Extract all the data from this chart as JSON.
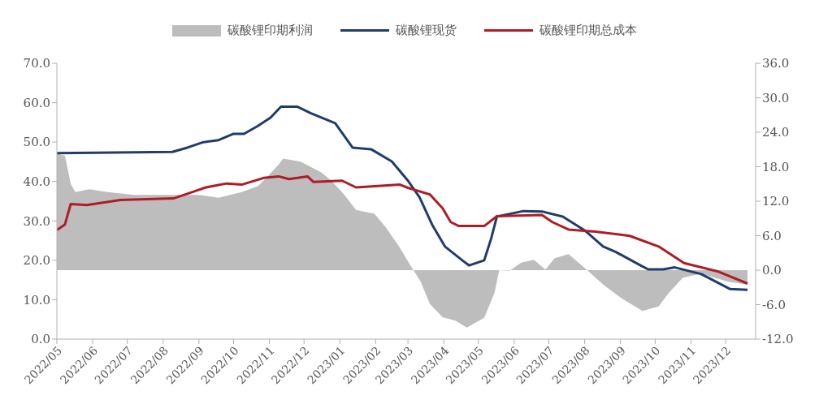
{
  "chart_data": {
    "type": "line",
    "legend": "top",
    "tick_labels": "xy",
    "xlim": [
      "2022-05-01",
      "2023-12-27"
    ],
    "xticks": [
      {
        "value": "2022-05-01",
        "label": "2022/05"
      },
      {
        "value": "2022-06-01",
        "label": "2022/06"
      },
      {
        "value": "2022-07-01",
        "label": "2022/07"
      },
      {
        "value": "2022-08-01",
        "label": "2022/08"
      },
      {
        "value": "2022-09-01",
        "label": "2022/09"
      },
      {
        "value": "2022-10-01",
        "label": "2022/10"
      },
      {
        "value": "2022-11-01",
        "label": "2022/11"
      },
      {
        "value": "2022-12-01",
        "label": "2022/12"
      },
      {
        "value": "2023-01-01",
        "label": "2023/01"
      },
      {
        "value": "2023-02-01",
        "label": "2023/02"
      },
      {
        "value": "2023-03-01",
        "label": "2023/03"
      },
      {
        "value": "2023-04-01",
        "label": "2023/04"
      },
      {
        "value": "2023-05-01",
        "label": "2023/05"
      },
      {
        "value": "2023-06-01",
        "label": "2023/06"
      },
      {
        "value": "2023-07-01",
        "label": "2023/07"
      },
      {
        "value": "2023-08-01",
        "label": "2023/08"
      },
      {
        "value": "2023-09-01",
        "label": "2023/09"
      },
      {
        "value": "2023-10-01",
        "label": "2023/10"
      },
      {
        "value": "2023-11-01",
        "label": "2023/11"
      },
      {
        "value": "2023-12-01",
        "label": "2023/12"
      }
    ],
    "ylim": [
      0,
      70
    ],
    "yticks": [
      {
        "value": 0,
        "label": "0.0"
      },
      {
        "value": 10,
        "label": "10.0"
      },
      {
        "value": 20,
        "label": "20.0"
      },
      {
        "value": 30,
        "label": "30.0"
      },
      {
        "value": 40,
        "label": "40.0"
      },
      {
        "value": 50,
        "label": "50.0"
      },
      {
        "value": 60,
        "label": "60.0"
      },
      {
        "value": 70,
        "label": "70.0"
      }
    ],
    "y2lim": [
      -12,
      36
    ],
    "y2ticks": [
      {
        "value": -12,
        "label": "-12.0"
      },
      {
        "value": -6,
        "label": "-6.0"
      },
      {
        "value": 0,
        "label": "0.0"
      },
      {
        "value": 6,
        "label": "6.0"
      },
      {
        "value": 12,
        "label": "12.0"
      },
      {
        "value": 18,
        "label": "18.0"
      },
      {
        "value": 24,
        "label": "24.0"
      },
      {
        "value": 30,
        "label": "30.0"
      },
      {
        "value": 36,
        "label": "36.0"
      }
    ],
    "series": [
      {
        "name": "碳酸锂印期利润",
        "type": "area",
        "axis": "y2",
        "color": "#bdbdbd",
        "x": [
          "2022-05-01",
          "2022-05-08",
          "2022-05-13",
          "2022-05-17",
          "2022-05-29",
          "2022-06-14",
          "2022-07-07",
          "2022-08-10",
          "2022-09-01",
          "2022-09-18",
          "2022-10-08",
          "2022-10-22",
          "2022-10-29",
          "2022-11-09",
          "2022-11-13",
          "2022-11-28",
          "2022-12-16",
          "2022-12-25",
          "2023-01-05",
          "2023-01-15",
          "2023-01-31",
          "2023-02-10",
          "2023-02-21",
          "2023-03-03",
          "2023-03-12",
          "2023-03-20",
          "2023-03-31",
          "2023-04-11",
          "2023-04-21",
          "2023-05-06",
          "2023-05-15",
          "2023-05-19",
          "2023-05-28",
          "2023-06-07",
          "2023-06-18",
          "2023-06-28",
          "2023-07-06",
          "2023-07-18",
          "2023-08-01",
          "2023-08-17",
          "2023-09-02",
          "2023-09-20",
          "2023-10-04",
          "2023-10-13",
          "2023-10-25",
          "2023-11-10",
          "2023-12-03",
          "2023-12-20"
        ],
        "values": [
          20.3,
          19.9,
          15.0,
          13.6,
          14.1,
          13.6,
          13.1,
          13.1,
          13.1,
          12.6,
          13.6,
          14.6,
          16.0,
          18.4,
          19.4,
          18.9,
          17.0,
          15.5,
          13.1,
          10.5,
          9.8,
          7.4,
          4.2,
          0.9,
          -2.0,
          -5.9,
          -8.2,
          -8.8,
          -10.0,
          -8.3,
          -3.9,
          0,
          -0.1,
          1.3,
          1.8,
          0.1,
          2.1,
          2.8,
          0.4,
          -2.5,
          -4.9,
          -7.1,
          -6.3,
          -3.9,
          -1.3,
          -0.6,
          -2.0,
          -2.5
        ]
      },
      {
        "name": "碳酸锂现货",
        "color": "#1f3d6b",
        "x": [
          "2022-05-01",
          "2022-08-09",
          "2022-08-22",
          "2022-09-05",
          "2022-09-18",
          "2022-10-01",
          "2022-10-10",
          "2022-10-22",
          "2022-11-02",
          "2022-11-11",
          "2022-11-25",
          "2022-12-07",
          "2022-12-28",
          "2023-01-12",
          "2023-01-28",
          "2023-02-15",
          "2023-03-01",
          "2023-03-11",
          "2023-03-22",
          "2023-04-02",
          "2023-04-17",
          "2023-04-23",
          "2023-05-06",
          "2023-05-12",
          "2023-05-17",
          "2023-06-09",
          "2023-06-25",
          "2023-07-13",
          "2023-08-01",
          "2023-08-17",
          "2023-08-28",
          "2023-09-19",
          "2023-09-25",
          "2023-10-08",
          "2023-10-18",
          "2023-11-10",
          "2023-12-05",
          "2023-12-20"
        ],
        "values": [
          47.2,
          47.5,
          48.6,
          50.0,
          50.5,
          52.1,
          52.1,
          54.1,
          56.2,
          59.0,
          59.0,
          57.3,
          54.8,
          48.6,
          48.2,
          45.1,
          40.2,
          36.0,
          29.0,
          23.5,
          20.0,
          18.7,
          20.0,
          25.5,
          31.1,
          32.5,
          32.4,
          31.1,
          27.6,
          23.5,
          22.1,
          18.6,
          17.7,
          17.7,
          18.2,
          16.5,
          12.7,
          12.5
        ]
      },
      {
        "name": "碳酸锂印期总成本",
        "color": "#b01c24",
        "x": [
          "2022-05-01",
          "2022-05-08",
          "2022-05-13",
          "2022-05-27",
          "2022-06-25",
          "2022-08-10",
          "2022-08-27",
          "2022-09-07",
          "2022-09-25",
          "2022-10-08",
          "2022-10-27",
          "2022-11-09",
          "2022-11-18",
          "2022-12-04",
          "2022-12-09",
          "2023-01-03",
          "2023-01-15",
          "2023-02-22",
          "2023-03-01",
          "2023-03-20",
          "2023-03-31",
          "2023-04-07",
          "2023-04-14",
          "2023-05-06",
          "2023-05-17",
          "2023-06-25",
          "2023-07-04",
          "2023-07-18",
          "2023-08-10",
          "2023-09-09",
          "2023-10-04",
          "2023-10-26",
          "2023-11-24",
          "2023-12-20"
        ],
        "values": [
          27.7,
          29.1,
          34.3,
          34.0,
          35.3,
          35.7,
          37.4,
          38.5,
          39.5,
          39.2,
          40.9,
          41.3,
          40.6,
          41.3,
          39.9,
          40.2,
          38.5,
          39.2,
          38.4,
          36.7,
          33.2,
          29.7,
          28.7,
          28.7,
          31.2,
          31.5,
          29.7,
          27.8,
          27.3,
          26.2,
          23.5,
          19.3,
          17.2,
          14.1
        ]
      }
    ]
  }
}
